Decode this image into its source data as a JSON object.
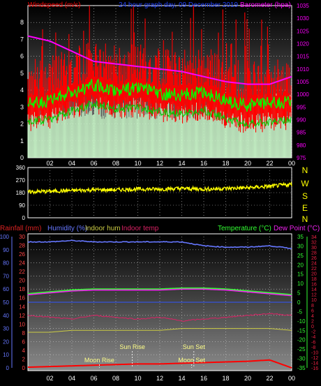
{
  "colors": {
    "windspeed": "#ff0000",
    "gust_avg": "#00ff00",
    "direction_bars": "#ccffcc",
    "barometer": "#ff00ff",
    "title": "#2244ff",
    "wind_dir": "#ffff00",
    "humidity": "#6677ff",
    "indoor_hum": "#cccc44",
    "indoor_temp": "#dd2266",
    "temperature": "#33ff33",
    "dewpoint": "#ee22ee",
    "rainfall": "#ff0000",
    "grid": "#cccccc"
  },
  "top": {
    "left_label": "Windspeed (m/s)",
    "title": "24 hour graph day, 09 December 2019",
    "right_label": "Barometer (hpa)"
  },
  "middle": {
    "compass": [
      "N",
      "W",
      "S",
      "E",
      "N"
    ]
  },
  "bottom": {
    "rain_label": "Rainfall (mm)",
    "hum_label": "Humidity (%)",
    "indoor_hum_label": "Indoor hum",
    "indoor_temp_label": "Indoor temp",
    "temp_label": "Temperature (°C)",
    "dew_label": "Dew Point (°C)",
    "events": [
      {
        "label": "Moon Rise",
        "hour": 6.5,
        "level": "low"
      },
      {
        "label": "Sun Rise",
        "hour": 9.5,
        "level": "high"
      },
      {
        "label": "Sun Set",
        "hour": 15.1,
        "level": "high"
      },
      {
        "label": "Moon Set",
        "hour": 14.9,
        "level": "low"
      }
    ]
  },
  "chart_data": [
    {
      "type": "line",
      "panel": "wind_barometer",
      "x_ticks": [
        "02",
        "04",
        "06",
        "08",
        "10",
        "12",
        "14",
        "16",
        "18",
        "20",
        "22",
        "00"
      ],
      "ylim_left": [
        0,
        9
      ],
      "y_ticks_left": [
        0,
        1,
        2,
        3,
        4,
        5,
        6,
        7,
        8
      ],
      "ylim_right": [
        975,
        1035
      ],
      "y_ticks_right": [
        975,
        980,
        985,
        990,
        995,
        1000,
        1005,
        1010,
        1015,
        1020,
        1025,
        1030,
        1035
      ],
      "series": [
        {
          "name": "Windspeed (m/s)",
          "axis": "left",
          "x": [
            0,
            2,
            4,
            6,
            8,
            10,
            12,
            14,
            16,
            18,
            20,
            22,
            24
          ],
          "y": [
            4.2,
            4.4,
            4.9,
            5.3,
            5.0,
            5.1,
            4.8,
            4.7,
            4.9,
            4.4,
            4.1,
            4.2,
            4.3
          ]
        },
        {
          "name": "Barometer (hpa)",
          "axis": "right",
          "x": [
            0,
            2,
            4,
            6,
            8,
            10,
            12,
            14,
            16,
            18,
            20,
            22,
            24
          ],
          "y": [
            1023,
            1021,
            1017,
            1013,
            1012,
            1011,
            1010,
            1009,
            1007,
            1005,
            1004,
            1004,
            1007
          ]
        }
      ]
    },
    {
      "type": "scatter",
      "panel": "wind_direction",
      "ylim": [
        0,
        360
      ],
      "y_ticks": [
        0,
        90,
        180,
        270,
        360
      ],
      "series": [
        {
          "name": "Wind direction",
          "x": [
            0,
            2,
            4,
            6,
            8,
            10,
            12,
            14,
            16,
            18,
            20,
            22,
            24
          ],
          "y": [
            185,
            190,
            195,
            200,
            200,
            205,
            205,
            210,
            205,
            210,
            215,
            225,
            240
          ]
        }
      ]
    },
    {
      "type": "line",
      "panel": "temp_humidity",
      "ylim_rain": [
        0,
        100
      ],
      "y_ticks_rain": [
        0,
        10,
        20,
        30,
        40,
        50,
        60,
        70,
        80,
        90,
        100
      ],
      "ylim_hum": [
        0,
        30
      ],
      "y_ticks_hum": [
        0,
        2,
        4,
        6,
        8,
        10,
        12,
        14,
        16,
        18,
        20,
        22,
        24,
        26,
        28,
        30
      ],
      "ylim_temp": [
        -35,
        35
      ],
      "y_ticks_temp": [
        -35,
        -30,
        -25,
        -20,
        -15,
        -10,
        -5,
        0,
        5,
        10,
        15,
        20,
        25,
        30,
        35
      ],
      "y_ticks_dew": [
        -16,
        -14,
        -12,
        -10,
        -8,
        -6,
        -4,
        -2,
        0,
        2,
        4,
        6,
        8,
        10,
        12,
        14,
        16,
        18,
        20,
        22,
        24,
        26,
        28,
        30,
        32,
        34
      ],
      "series": [
        {
          "name": "Humidity (%)",
          "scale": "rain",
          "x": [
            0,
            2,
            4,
            6,
            8,
            10,
            12,
            14,
            16,
            18,
            20,
            22,
            24
          ],
          "y": [
            96,
            96,
            97,
            96,
            96,
            96,
            96,
            96,
            93,
            92,
            92,
            93,
            91
          ]
        },
        {
          "name": "Temperature (°C)",
          "scale": "temp",
          "x": [
            0,
            2,
            4,
            6,
            8,
            10,
            12,
            14,
            16,
            18,
            20,
            22,
            24
          ],
          "y": [
            4.5,
            5.5,
            6.5,
            7.0,
            7.0,
            7.0,
            7.0,
            7.5,
            7.5,
            7.0,
            6.0,
            5.0,
            4.0
          ]
        },
        {
          "name": "Dew Point (°C)",
          "scale": "temp",
          "x": [
            0,
            2,
            4,
            6,
            8,
            10,
            12,
            14,
            16,
            18,
            20,
            22,
            24
          ],
          "y": [
            4.0,
            5.0,
            6.0,
            6.5,
            6.5,
            6.5,
            6.5,
            7.0,
            7.0,
            6.5,
            5.5,
            4.5,
            3.5
          ]
        },
        {
          "name": "Indoor temp",
          "scale": "temp",
          "x": [
            0,
            2,
            4,
            6,
            8,
            10,
            12,
            14,
            16,
            18,
            20,
            22,
            24
          ],
          "y": [
            -7,
            -8,
            -9,
            -7,
            -8,
            -9,
            -8,
            -10,
            -9,
            -8,
            -7,
            -6,
            -7
          ]
        },
        {
          "name": "Indoor hum",
          "scale": "temp",
          "x": [
            0,
            2,
            4,
            6,
            8,
            10,
            12,
            14,
            16,
            18,
            20,
            22,
            24
          ],
          "y": [
            -16,
            -16,
            -15,
            -15,
            -15,
            -15,
            -15,
            -14,
            -14,
            -14,
            -14,
            -14,
            -15
          ]
        },
        {
          "name": "Rainfall (mm)",
          "scale": "rain",
          "x": [
            0,
            2,
            4,
            6,
            8,
            10,
            12,
            14,
            16,
            18,
            20,
            22,
            24
          ],
          "y": [
            0.5,
            1,
            1.5,
            2,
            2.5,
            3,
            3,
            3.5,
            4,
            4.5,
            5,
            6,
            0
          ]
        }
      ]
    }
  ]
}
